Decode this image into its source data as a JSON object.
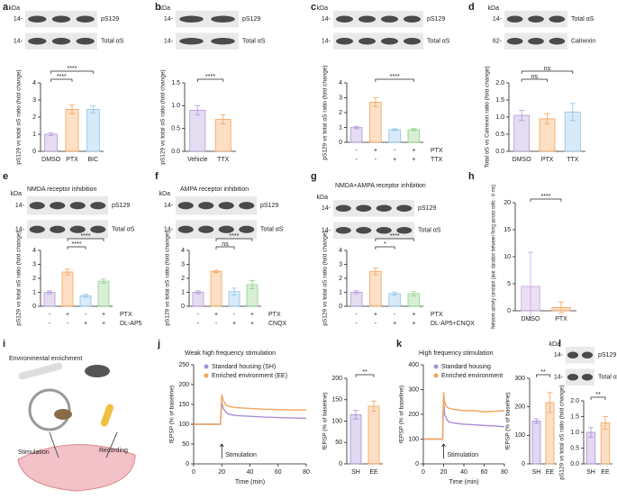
{
  "chart_data": [
    {
      "type": "bar",
      "panel": "a",
      "blot": {
        "kda": "kDa",
        "markers": [
          "14-",
          "14-"
        ],
        "bands": [
          "pS129",
          "Total αS"
        ]
      },
      "categories": [
        "DMSO",
        "PTX",
        "BIC"
      ],
      "values": [
        1,
        2.45,
        2.45
      ],
      "errors": [
        0.08,
        0.25,
        0.2
      ],
      "colors": [
        "#b49ad8",
        "#f5a35a",
        "#8fc3e8"
      ],
      "ylim": [
        0,
        4
      ],
      "yticks": [
        0,
        1,
        2,
        3,
        4
      ],
      "ylabel": "pS129 vs total αS ratio (fold change)",
      "comparisons": [
        {
          "label": "****",
          "pair": [
            0,
            1
          ]
        },
        {
          "label": "****",
          "pair": [
            0,
            2
          ]
        }
      ]
    },
    {
      "type": "bar",
      "panel": "b",
      "blot": {
        "kda": "kDa",
        "markers": [
          "14-",
          "14-"
        ],
        "bands": [
          "pS129",
          "Total αS"
        ]
      },
      "categories": [
        "Vehicle",
        "TTX"
      ],
      "values": [
        0.9,
        0.7
      ],
      "errors": [
        0.1,
        0.1
      ],
      "colors": [
        "#b49ad8",
        "#f5a35a"
      ],
      "ylim": [
        0,
        1.5
      ],
      "yticks": [
        {
          "value": 0,
          "label": "0.0"
        },
        0.5,
        {
          "value": 1,
          "label": "1.0"
        },
        1.5
      ],
      "ylabel": "pS129 vs total αS ratio (fold change)",
      "comparisons": [
        {
          "label": "****",
          "pair": [
            0,
            1
          ]
        }
      ]
    },
    {
      "type": "bar",
      "panel": "c",
      "blot": {
        "kda": "kDa",
        "markers": [
          "14-",
          "14-"
        ],
        "bands": [
          "pS129",
          "Total αS"
        ]
      },
      "categories": [
        null,
        null,
        null,
        null
      ],
      "values": [
        1,
        2.7,
        0.85,
        0.85
      ],
      "errors": [
        0.08,
        0.3,
        0.06,
        0.07
      ],
      "colors": [
        "#b49ad8",
        "#f5a35a",
        "#8fc3e8",
        "#8fd18a"
      ],
      "ylim": [
        0,
        4
      ],
      "yticks": [
        0,
        1,
        2,
        3,
        4
      ],
      "ylabel": "pS129 vs total αS ratio (fold change)",
      "conditions": [
        {
          "name": "PTX",
          "signs": [
            "-",
            "+",
            "-",
            "+"
          ]
        },
        {
          "name": "TTX",
          "signs": [
            "-",
            "-",
            "+",
            "+"
          ]
        }
      ],
      "comparisons": [
        {
          "label": "****",
          "pair": [
            1,
            3
          ]
        }
      ]
    },
    {
      "type": "bar",
      "panel": "d",
      "blot": {
        "kda": "kDa",
        "markers": [
          "14-",
          "62-"
        ],
        "bands": [
          "Total αS",
          "Calnexin"
        ]
      },
      "categories": [
        "DMSO",
        "PTX",
        "TTX"
      ],
      "values": [
        1.05,
        0.95,
        1.15
      ],
      "errors": [
        0.15,
        0.15,
        0.25
      ],
      "colors": [
        "#b49ad8",
        "#f5a35a",
        "#8fc3e8"
      ],
      "ylim": [
        0,
        2
      ],
      "yticks": [
        {
          "value": 0,
          "label": "0.0"
        },
        0.5,
        {
          "value": 1,
          "label": "1.0"
        },
        1.5,
        {
          "value": 2,
          "label": "2.0"
        }
      ],
      "ylabel": "Total αS vs Calnexin ratio (fold change)",
      "comparisons": [
        {
          "label": "ns",
          "pair": [
            0,
            1
          ]
        },
        {
          "label": "ns",
          "pair": [
            0,
            2
          ]
        }
      ]
    },
    {
      "type": "bar",
      "panel": "e",
      "title": "NMDA receptor inhibition",
      "blot": {
        "kda": "kDa",
        "markers": [
          "14-",
          "14-"
        ],
        "bands": [
          "pS129",
          "Total αS"
        ]
      },
      "categories": [
        null,
        null,
        null,
        null
      ],
      "values": [
        1,
        2.45,
        0.75,
        1.8
      ],
      "errors": [
        0.1,
        0.2,
        0.1,
        0.15
      ],
      "colors": [
        "#b49ad8",
        "#f5a35a",
        "#8fc3e8",
        "#8fd18a"
      ],
      "ylim": [
        0,
        4
      ],
      "yticks": [
        0,
        1,
        2,
        3,
        4
      ],
      "ylabel": "pS129 vs total αS ratio (fold change)",
      "conditions": [
        {
          "name": "PTX",
          "signs": [
            "-",
            "+",
            "-",
            "+"
          ]
        },
        {
          "name": "DL-AP5",
          "signs": [
            "-",
            "-",
            "+",
            "+"
          ]
        }
      ],
      "comparisons": [
        {
          "label": "****",
          "pair": [
            1,
            2
          ]
        },
        {
          "label": "****",
          "pair": [
            1,
            3
          ]
        }
      ]
    },
    {
      "type": "bar",
      "panel": "f",
      "title": "AMPA receptor inhibition",
      "blot": {
        "kda": "kDa",
        "markers": [
          "14-",
          "14-"
        ],
        "bands": [
          "pS129",
          "Total αS"
        ]
      },
      "categories": [
        null,
        null,
        null,
        null
      ],
      "values": [
        1,
        2.5,
        1.05,
        1.55
      ],
      "errors": [
        0.1,
        0.08,
        0.25,
        0.3
      ],
      "colors": [
        "#b49ad8",
        "#f5a35a",
        "#8fc3e8",
        "#8fd18a"
      ],
      "ylim": [
        0,
        4
      ],
      "yticks": [
        0,
        1,
        2,
        3,
        4
      ],
      "ylabel": "pS129 vs total αS ratio (fold change)",
      "conditions": [
        {
          "name": "PTX",
          "signs": [
            "-",
            "+",
            "-",
            "+"
          ]
        },
        {
          "name": "CNQX",
          "signs": [
            "-",
            "-",
            "+",
            "+"
          ]
        }
      ],
      "comparisons": [
        {
          "label": "ns",
          "pair": [
            1,
            2
          ]
        },
        {
          "label": "****",
          "pair": [
            1,
            3
          ]
        }
      ]
    },
    {
      "type": "bar",
      "panel": "g",
      "title": "NMDA+AMPA receptor inhibition",
      "blot": {
        "kda": "kDa",
        "markers": [
          "14-",
          "14-"
        ],
        "bands": [
          "pS129",
          "Total αS"
        ]
      },
      "categories": [
        null,
        null,
        null,
        null
      ],
      "values": [
        1,
        2.5,
        0.9,
        0.9
      ],
      "errors": [
        0.1,
        0.25,
        0.1,
        0.15
      ],
      "colors": [
        "#b49ad8",
        "#f5a35a",
        "#8fc3e8",
        "#8fd18a"
      ],
      "ylim": [
        0,
        4
      ],
      "yticks": [
        0,
        1,
        2,
        3,
        4
      ],
      "ylabel": "pS129 vs total αS ratio (fold change)",
      "conditions": [
        {
          "name": "PTX",
          "signs": [
            "-",
            "+",
            "-",
            "+"
          ]
        },
        {
          "name": "DL-AP5+CNQX",
          "signs": [
            "-",
            "-",
            "+",
            "+"
          ]
        }
      ],
      "comparisons": [
        {
          "label": "*",
          "pair": [
            1,
            2
          ]
        },
        {
          "label": "****",
          "pair": [
            1,
            3
          ]
        }
      ]
    },
    {
      "type": "bar",
      "panel": "h",
      "categories": [
        "DMSO",
        "PTX"
      ],
      "values": [
        4.5,
        0.6
      ],
      "errors": [
        6.3,
        1.0
      ],
      "colors": [
        "#c9a2dc",
        "#f5a35a"
      ],
      "ylim": [
        0,
        20
      ],
      "yticks": [
        0,
        5,
        10,
        15,
        20
      ],
      "ylabel": "Network activity constant (ave. duration between firing across cells - in ms)",
      "comparisons": [
        {
          "label": "****",
          "pair": [
            0,
            1
          ]
        }
      ]
    },
    {
      "type": "line",
      "panel": "j",
      "title": "Weak high frequency stimulation",
      "xlabel": "Time (min)",
      "ylabel": "fEPSP (% of baseline)",
      "x": [
        0,
        5,
        10,
        15,
        19,
        20,
        21,
        23,
        25,
        30,
        40,
        50,
        60,
        70,
        80
      ],
      "series": [
        {
          "name": "Standard housing (SH)",
          "color": "#a98fd6",
          "values": [
            100,
            100,
            100,
            100,
            100,
            155,
            140,
            130,
            125,
            122,
            120,
            118,
            117,
            116,
            115
          ]
        },
        {
          "name": "Enriched environment (EE)",
          "color": "#f5a35a",
          "values": [
            100,
            100,
            100,
            100,
            100,
            175,
            160,
            148,
            145,
            142,
            140,
            138,
            137,
            136,
            136
          ]
        }
      ],
      "xlim": [
        0,
        80
      ],
      "xticks": [
        0,
        20,
        40,
        60,
        80
      ],
      "ylim": [
        0,
        250
      ],
      "yticks": [
        0,
        50,
        100,
        150,
        200,
        250
      ],
      "annotation": {
        "text": "Stimulation",
        "x": 20
      }
    },
    {
      "type": "bar",
      "categories": [
        "SH",
        "EE"
      ],
      "values": [
        115,
        135
      ],
      "errors": [
        10,
        12
      ],
      "colors": [
        "#a98fd6",
        "#f5a35a"
      ],
      "ylim": [
        0,
        200
      ],
      "yticks": [
        0,
        50,
        100,
        150,
        200
      ],
      "ylabel": "fEPSP (% of baseline)",
      "comparisons": [
        {
          "label": "**",
          "pair": [
            0,
            1
          ]
        }
      ]
    },
    {
      "type": "line",
      "panel": "k",
      "title": "High frequency stimulation",
      "xlabel": "Time (min)",
      "ylabel": "fEPSP (% of baseline)",
      "x": [
        0,
        5,
        10,
        15,
        19,
        20,
        21,
        23,
        25,
        30,
        40,
        50,
        60,
        70,
        80
      ],
      "series": [
        {
          "name": "Standard housing",
          "color": "#a98fd6",
          "values": [
            100,
            100,
            100,
            100,
            100,
            260,
            200,
            180,
            170,
            165,
            160,
            158,
            155,
            153,
            150
          ]
        },
        {
          "name": "Enriched environment",
          "color": "#f5a35a",
          "values": [
            100,
            100,
            100,
            100,
            100,
            290,
            250,
            230,
            225,
            220,
            215,
            215,
            210,
            212,
            215
          ]
        }
      ],
      "xlim": [
        0,
        80
      ],
      "xticks": [
        0,
        20,
        40,
        60,
        80
      ],
      "ylim": [
        0,
        400
      ],
      "yticks": [
        0,
        100,
        200,
        300,
        400
      ],
      "annotation": {
        "text": "Stimulation",
        "x": 20
      }
    },
    {
      "type": "bar",
      "categories": [
        "SH",
        "EE"
      ],
      "values": [
        150,
        215
      ],
      "errors": [
        8,
        35
      ],
      "colors": [
        "#a98fd6",
        "#f5a35a"
      ],
      "ylim": [
        0,
        300
      ],
      "yticks": [
        0,
        100,
        200,
        300
      ],
      "ylabel": "fEPSP (% of baseline)",
      "comparisons": [
        {
          "label": "**",
          "pair": [
            0,
            1
          ]
        }
      ]
    },
    {
      "type": "bar",
      "panel": "l",
      "blot": {
        "kda": "kDa",
        "markers": [
          "14-",
          "14-"
        ],
        "bands": [
          "pS129",
          "Total αS"
        ]
      },
      "categories": [
        "SH",
        "EE"
      ],
      "values": [
        1,
        1.3
      ],
      "errors": [
        0.15,
        0.2
      ],
      "colors": [
        "#a98fd6",
        "#f5a35a"
      ],
      "ylim": [
        0,
        2
      ],
      "yticks": [
        {
          "value": 0,
          "label": "0.0"
        },
        0.5,
        {
          "value": 1,
          "label": "1.0"
        },
        1.5,
        {
          "value": 2,
          "label": "2.0"
        }
      ],
      "ylabel": "pS129 vs total αS ratio (fold change)",
      "comparisons": [
        {
          "label": "**",
          "pair": [
            0,
            1
          ]
        }
      ]
    }
  ],
  "schematic": {
    "panel": "i",
    "title": "Environmental enrichment",
    "left": "Stimulation",
    "right": "Recording"
  }
}
